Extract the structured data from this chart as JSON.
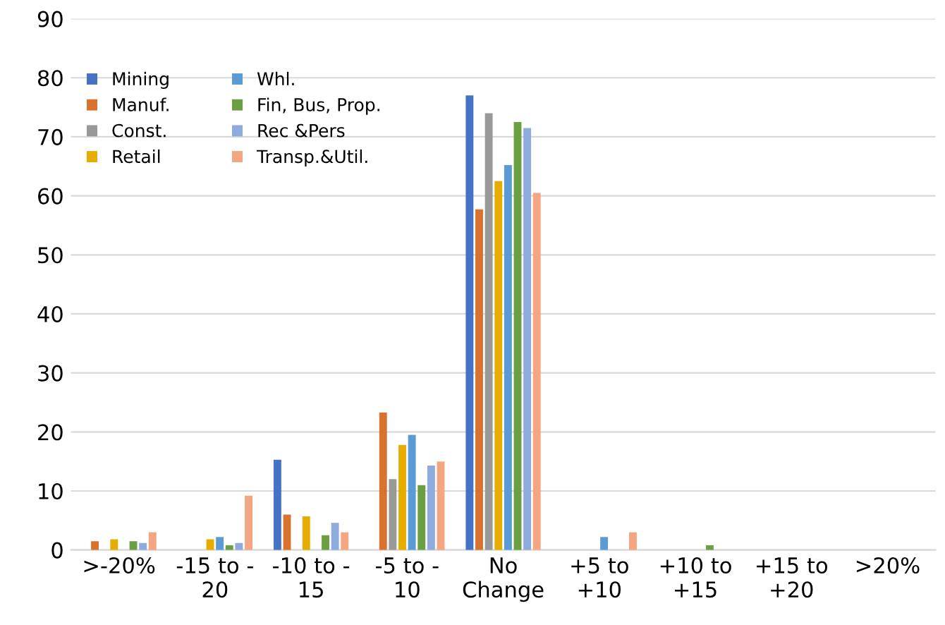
{
  "chart_data": {
    "type": "bar",
    "categories": [
      ">-20%",
      "-15 to -\n20",
      "-10 to -\n15",
      "-5 to -\n10",
      "No\nChange",
      "+5 to\n+10",
      "+10 to\n+15",
      "+15 to\n+20",
      ">20%"
    ],
    "ylim": [
      0,
      90
    ],
    "yticks": [
      0,
      10,
      20,
      30,
      40,
      50,
      60,
      70,
      80,
      90
    ],
    "grid": "y",
    "legend": "top left",
    "series": [
      {
        "name": "Mining",
        "color": "#4472c4",
        "values": [
          0,
          0,
          15.3,
          0,
          77,
          0,
          0,
          0,
          0
        ]
      },
      {
        "name": "Manuf.",
        "color": "#d9722e",
        "values": [
          1.5,
          0,
          6,
          23.3,
          57.7,
          0,
          0,
          0,
          0
        ]
      },
      {
        "name": "Const.",
        "color": "#999999",
        "values": [
          0,
          0,
          0,
          12,
          74,
          0,
          0,
          0,
          0
        ]
      },
      {
        "name": "Retail",
        "color": "#e6ac00",
        "values": [
          1.8,
          1.8,
          5.7,
          17.8,
          62.5,
          0,
          0,
          0,
          0
        ]
      },
      {
        "name": "Whl.",
        "color": "#5b9bd5",
        "values": [
          0,
          2.2,
          0,
          19.5,
          65.2,
          2.2,
          0,
          0,
          0
        ]
      },
      {
        "name": "Fin, Bus, Prop.",
        "color": "#6a9f44",
        "values": [
          1.5,
          0.8,
          2.5,
          11,
          72.5,
          0,
          0.8,
          0,
          0
        ]
      },
      {
        "name": "Rec &Pers",
        "color": "#8faadc",
        "values": [
          1.2,
          1.2,
          4.6,
          14.3,
          71.5,
          0,
          0,
          0,
          0
        ]
      },
      {
        "name": "Transp.&Util.",
        "color": "#f4a582",
        "values": [
          3,
          9.2,
          3,
          15,
          60.5,
          3,
          0,
          0,
          0
        ]
      }
    ]
  }
}
